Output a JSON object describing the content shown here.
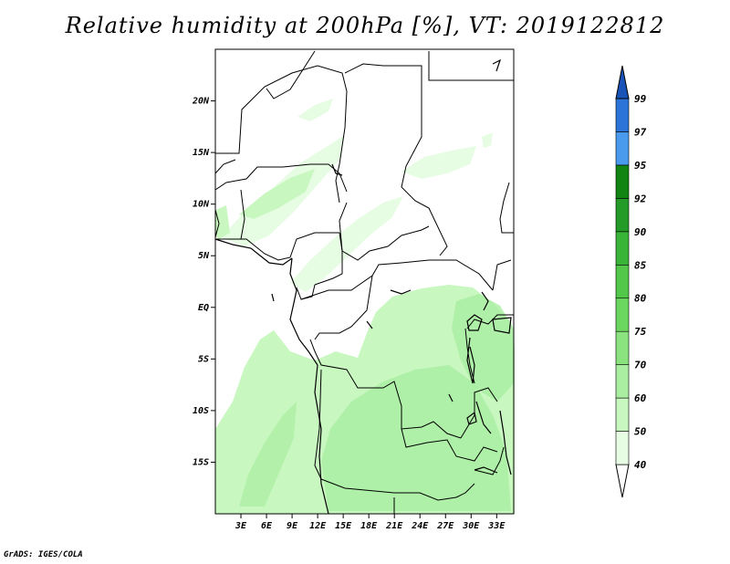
{
  "title": "Relative humidity at 200hPa [%], VT: 2019122812",
  "credit": "GrADS: IGES/COLA",
  "map": {
    "lon_range": [
      0,
      35
    ],
    "lat_range": [
      -20,
      25
    ],
    "lat_ticks": [
      {
        "value": 20,
        "label": "20N"
      },
      {
        "value": 15,
        "label": "15N"
      },
      {
        "value": 10,
        "label": "10N"
      },
      {
        "value": 5,
        "label": "5N"
      },
      {
        "value": 0,
        "label": "EQ"
      },
      {
        "value": -5,
        "label": "5S"
      },
      {
        "value": -10,
        "label": "10S"
      },
      {
        "value": -15,
        "label": "15S"
      }
    ],
    "lon_ticks": [
      {
        "value": 3,
        "label": "3E"
      },
      {
        "value": 6,
        "label": "6E"
      },
      {
        "value": 9,
        "label": "9E"
      },
      {
        "value": 12,
        "label": "12E"
      },
      {
        "value": 15,
        "label": "15E"
      },
      {
        "value": 18,
        "label": "18E"
      },
      {
        "value": 21,
        "label": "21E"
      },
      {
        "value": 24,
        "label": "24E"
      },
      {
        "value": 27,
        "label": "27E"
      },
      {
        "value": 30,
        "label": "30E"
      },
      {
        "value": 33,
        "label": "33E"
      }
    ]
  },
  "colorbar": {
    "levels": [
      "40",
      "50",
      "60",
      "70",
      "75",
      "80",
      "85",
      "90",
      "92",
      "95",
      "97",
      "99"
    ],
    "colors": [
      "#ffffff",
      "#e6fde3",
      "#c8f7c0",
      "#a9eea1",
      "#8ae37f",
      "#6cd760",
      "#52c749",
      "#3ab339",
      "#249b27",
      "#128412",
      "#4a9bee",
      "#2c74d7",
      "#1a53b7"
    ]
  }
}
